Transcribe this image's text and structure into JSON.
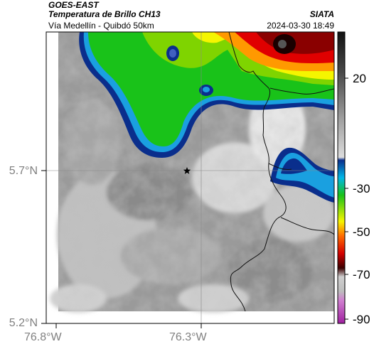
{
  "header": {
    "satellite": "GOES-EAST",
    "product": "Temperatura de Brillo CH13",
    "region": "Vía Medellín - Quibdó 50km",
    "source": "SIATA",
    "timestamp": "2024-03-30 18:49"
  },
  "axes": {
    "y_ticks": [
      "5.7°N",
      "5.2°N"
    ],
    "x_ticks": [
      "76.8°W",
      "76.3°W"
    ]
  },
  "colorbar": {
    "labels": [
      "20",
      "-30",
      "-50",
      "-70",
      "-90"
    ],
    "colors": [
      "#1a1a1a",
      "#7a7a7a",
      "#b5b5b5",
      "#dcdcdc",
      "#0a2e8c",
      "#00b7e8",
      "#19c219",
      "#f5f500",
      "#ff6a00",
      "#d40000",
      "#3b0000",
      "#e8e8e8",
      "#c040c0"
    ]
  },
  "marker": {
    "icon": "star-icon"
  },
  "colors": {
    "cold_blue": "#0a2e8c",
    "green": "#19c219",
    "yellow": "#f5f500",
    "red": "#e00000",
    "dark_core": "#1a0000"
  }
}
